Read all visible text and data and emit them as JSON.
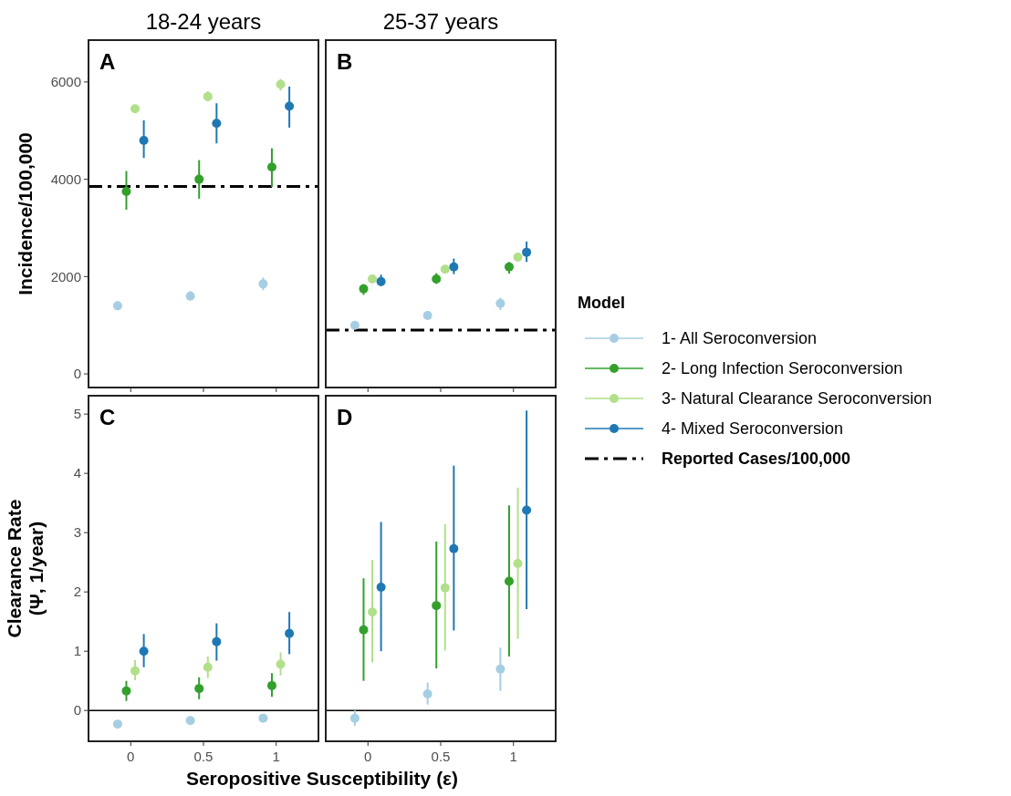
{
  "chart_data": [
    {
      "type": "scatter",
      "title": "18-24 years",
      "ylabel": "Incidence/100,000",
      "annotations": [
        "A"
      ],
      "xlim": [
        -0.29,
        1.29
      ],
      "xticks": [
        {
          "value": 0,
          "label": null
        },
        {
          "value": 0.5,
          "label": null
        },
        {
          "value": 1,
          "label": null
        }
      ],
      "ylim": [
        -280,
        6860
      ],
      "yticks": [
        0,
        2000,
        4000,
        6000
      ],
      "tick_labels": "y",
      "marker": "circle",
      "grid": false,
      "legend": false,
      "ref_lines": [
        {
          "axis": "y",
          "value": 3850,
          "color": "#000000",
          "line_style": "dashed"
        }
      ],
      "series": [
        {
          "color": "#a6cee3",
          "x": [
            -0.09,
            0.41,
            0.91
          ],
          "values": [
            1400,
            1600,
            1850
          ],
          "errors": [
            [
              1330,
              1460
            ],
            [
              1550,
              1700
            ],
            [
              1720,
              1980
            ]
          ]
        },
        {
          "color": "#33a02c",
          "x": [
            -0.03,
            0.47,
            0.97
          ],
          "values": [
            3750,
            4000,
            4250
          ],
          "errors": [
            [
              3375,
              4170
            ],
            [
              3600,
              4394
            ],
            [
              3844,
              4637
            ]
          ]
        },
        {
          "color": "#b2df8a",
          "x": [
            0.03,
            0.53,
            1.03
          ],
          "values": [
            5450,
            5700,
            5950
          ],
          "errors": [
            [
              5420,
              5520
            ],
            [
              5600,
              5810
            ],
            [
              5820,
              6060
            ]
          ]
        },
        {
          "color": "#1f78b4",
          "x": [
            0.09,
            0.59,
            1.09
          ],
          "values": [
            4800,
            5150,
            5500
          ],
          "errors": [
            [
              4437,
              5212
            ],
            [
              4737,
              5562
            ],
            [
              5062,
              5906
            ]
          ]
        }
      ]
    },
    {
      "type": "scatter",
      "title": "25-37 years",
      "annotations": [
        "B"
      ],
      "xlim": [
        -0.29,
        1.29
      ],
      "xticks": [
        {
          "value": 0,
          "label": null
        },
        {
          "value": 0.5,
          "label": null
        },
        {
          "value": 1,
          "label": null
        }
      ],
      "ylim": [
        -280,
        6860
      ],
      "tick_labels": false,
      "marker": "circle",
      "grid": false,
      "legend": "right",
      "legend_title": "Model",
      "ref_lines": [
        {
          "axis": "y",
          "value": 900,
          "color": "#000000",
          "line_style": "dashed",
          "label": "Reported Cases/100,000"
        }
      ],
      "series": [
        {
          "name": "1- All Seroconversion",
          "color": "#a6cee3",
          "x": [
            -0.09,
            0.41,
            0.91
          ],
          "values": [
            1000,
            1200,
            1450
          ],
          "errors": [
            [
              940,
              1060
            ],
            [
              1160,
              1290
            ],
            [
              1312,
              1562
            ]
          ]
        },
        {
          "name": "2- Long Infection Seroconversion",
          "color": "#33a02c",
          "x": [
            -0.03,
            0.47,
            0.97
          ],
          "values": [
            1750,
            1950,
            2200
          ],
          "errors": [
            [
              1625,
              1844
            ],
            [
              1850,
              2070
            ],
            [
              2060,
              2300
            ]
          ]
        },
        {
          "name": "3- Natural Clearance Seroconversion",
          "color": "#b2df8a",
          "x": [
            0.03,
            0.53,
            1.03
          ],
          "values": [
            1950,
            2150,
            2400
          ],
          "errors": [
            [
              1900,
              2000
            ],
            [
              2110,
              2230
            ],
            [
              2330,
              2460
            ]
          ]
        },
        {
          "name": "4- Mixed Seroconversion",
          "color": "#1f78b4",
          "x": [
            0.09,
            0.59,
            1.09
          ],
          "values": [
            1900,
            2200,
            2500
          ],
          "errors": [
            [
              1800,
              2040
            ],
            [
              2050,
              2370
            ],
            [
              2300,
              2720
            ]
          ]
        }
      ]
    },
    {
      "type": "scatter",
      "ylabel": "Clearance Rate\n(Ψ, 1/year)",
      "xlabel": "Seropositive Susceptibility (ε)",
      "annotations": [
        "C"
      ],
      "xlim": [
        -0.29,
        1.29
      ],
      "xticks": [
        {
          "value": 0,
          "label": "0"
        },
        {
          "value": 0.5,
          "label": "0.5"
        },
        {
          "value": 1,
          "label": "1"
        }
      ],
      "ylim": [
        -0.52,
        5.31
      ],
      "yticks": [
        0,
        1,
        2,
        3,
        4,
        5
      ],
      "marker": "circle",
      "grid": false,
      "legend": false,
      "ref_lines": [
        {
          "axis": "y",
          "value": 0,
          "color": "#000000",
          "line_style": "solid"
        }
      ],
      "series": [
        {
          "color": "#a6cee3",
          "x": [
            -0.09,
            0.41,
            0.91
          ],
          "values": [
            -0.23,
            -0.17,
            -0.13
          ],
          "errors": [
            [
              -0.28,
              -0.18
            ],
            [
              -0.22,
              -0.12
            ],
            [
              -0.18,
              -0.08
            ]
          ]
        },
        {
          "color": "#33a02c",
          "x": [
            -0.03,
            0.47,
            0.97
          ],
          "values": [
            0.33,
            0.37,
            0.42
          ],
          "errors": [
            [
              0.16,
              0.5
            ],
            [
              0.19,
              0.56
            ],
            [
              0.23,
              0.63
            ]
          ]
        },
        {
          "color": "#b2df8a",
          "x": [
            0.03,
            0.53,
            1.03
          ],
          "values": [
            0.67,
            0.73,
            0.78
          ],
          "errors": [
            [
              0.51,
              0.85
            ],
            [
              0.55,
              0.91
            ],
            [
              0.59,
              0.98
            ]
          ]
        },
        {
          "color": "#1f78b4",
          "x": [
            0.09,
            0.59,
            1.09
          ],
          "values": [
            1.0,
            1.16,
            1.3
          ],
          "errors": [
            [
              0.73,
              1.29
            ],
            [
              0.84,
              1.47
            ],
            [
              0.95,
              1.66
            ]
          ]
        }
      ]
    },
    {
      "type": "scatter",
      "annotations": [
        "D"
      ],
      "xlim": [
        -0.29,
        1.29
      ],
      "xticks": [
        {
          "value": 0,
          "label": "0"
        },
        {
          "value": 0.5,
          "label": "0.5"
        },
        {
          "value": 1,
          "label": "1"
        }
      ],
      "ylim": [
        -0.52,
        5.31
      ],
      "tick_labels": "x",
      "marker": "circle",
      "grid": false,
      "legend": false,
      "ref_lines": [
        {
          "axis": "y",
          "value": 0,
          "color": "#000000",
          "line_style": "solid"
        }
      ],
      "series": [
        {
          "color": "#a6cee3",
          "x": [
            -0.09,
            0.41,
            0.91
          ],
          "values": [
            -0.13,
            0.28,
            0.7
          ],
          "errors": [
            [
              -0.26,
              0
            ],
            [
              0.1,
              0.47
            ],
            [
              0.33,
              1.06
            ]
          ]
        },
        {
          "color": "#33a02c",
          "x": [
            -0.03,
            0.47,
            0.97
          ],
          "values": [
            1.36,
            1.77,
            2.18
          ],
          "errors": [
            [
              0.5,
              2.23
            ],
            [
              0.71,
              2.85
            ],
            [
              0.91,
              3.46
            ]
          ]
        },
        {
          "color": "#b2df8a",
          "x": [
            0.03,
            0.53,
            1.03
          ],
          "values": [
            1.66,
            2.07,
            2.48
          ],
          "errors": [
            [
              0.81,
              2.54
            ],
            [
              1.01,
              3.14
            ],
            [
              1.21,
              3.76
            ]
          ]
        },
        {
          "color": "#1f78b4",
          "x": [
            0.09,
            0.59,
            1.09
          ],
          "values": [
            2.08,
            2.73,
            3.38
          ],
          "errors": [
            [
              1.0,
              3.18
            ],
            [
              1.35,
              4.13
            ],
            [
              1.71,
              5.06
            ]
          ]
        }
      ]
    }
  ]
}
